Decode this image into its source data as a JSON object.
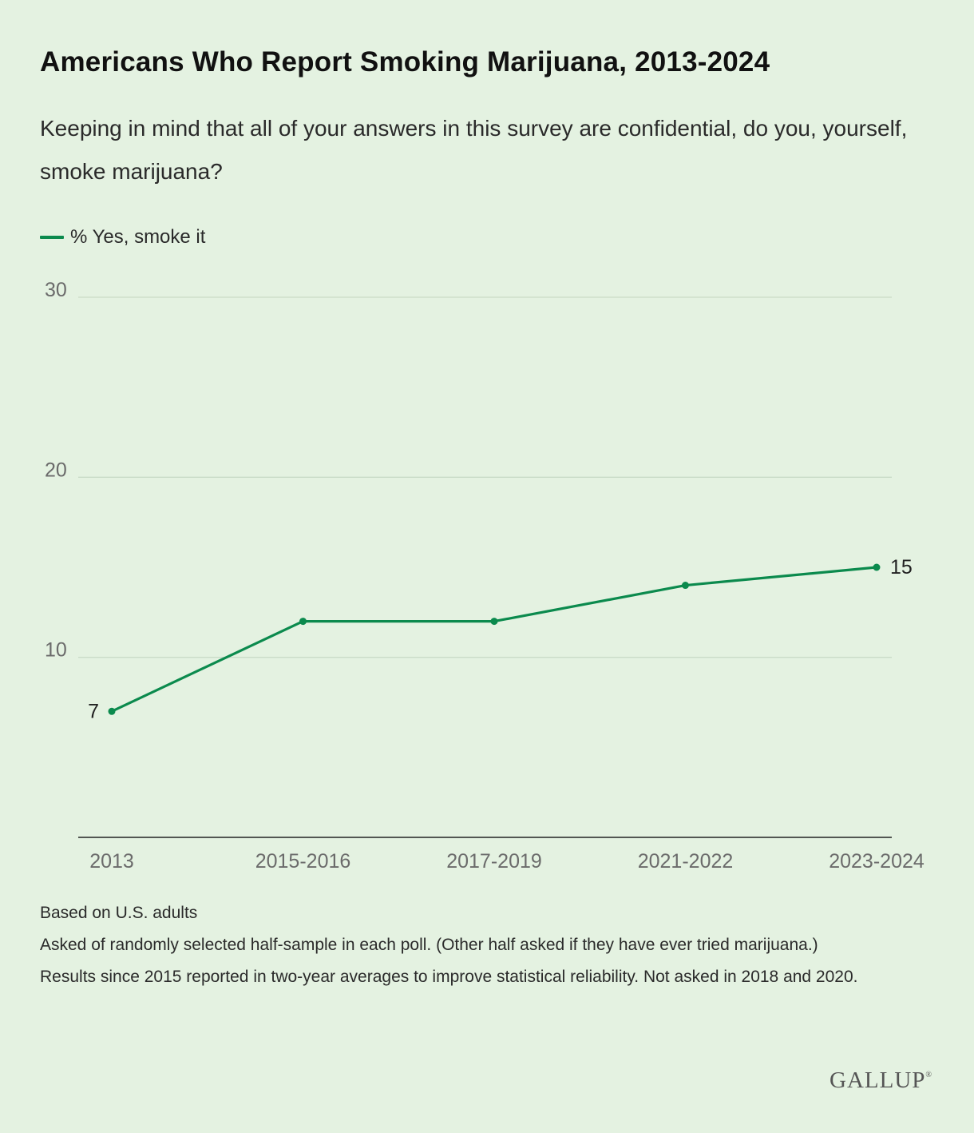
{
  "title": "Americans Who Report Smoking Marijuana, 2013-2024",
  "subtitle": "Keeping in mind that all of your answers in this survey are confidential, do you, yourself, smoke marijuana?",
  "notes": [
    "Based on U.S. adults",
    "Asked of randomly selected half-sample in each poll. (Other half asked if they have ever tried marijuana.)",
    "Results since 2015 reported in two-year averages to improve statistical reliability. Not asked in 2018 and 2020."
  ],
  "logo": "GALLUP",
  "colors": {
    "series": "#0b8a4d",
    "background": "#e4f2e1",
    "grid": "#c9dbc7",
    "axis": "#222222"
  },
  "chart_data": {
    "type": "line",
    "title": "Americans Who Report Smoking Marijuana, 2013-2024",
    "categories": [
      "2013",
      "2015-2016",
      "2017-2019",
      "2021-2022",
      "2023-2024"
    ],
    "series": [
      {
        "name": "% Yes, smoke it",
        "values": [
          7,
          12,
          12,
          14,
          15
        ],
        "labeled_points": {
          "0": "7",
          "4": "15"
        }
      }
    ],
    "yticks": [
      10,
      20,
      30
    ],
    "ylim": [
      0,
      30
    ],
    "grid": true,
    "legend": "top-left"
  }
}
